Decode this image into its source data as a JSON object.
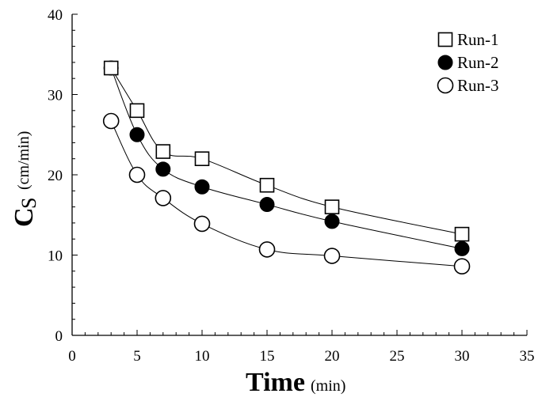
{
  "chart_data": {
    "type": "line",
    "xlabel": "Time",
    "xlabel_unit": "(min)",
    "ylabel_main": "C",
    "ylabel_sub": "S",
    "ylabel_unit": "(cm/min)",
    "xlim": [
      0,
      35
    ],
    "ylim": [
      0,
      40
    ],
    "xticks": [
      0,
      5,
      10,
      15,
      20,
      25,
      30,
      35
    ],
    "yticks": [
      0,
      10,
      20,
      30,
      40
    ],
    "grid": false,
    "legend_position": "top-right",
    "x": [
      3,
      5,
      7,
      10,
      15,
      20,
      30
    ],
    "series": [
      {
        "name": "Run-1",
        "marker": "square-open",
        "values": [
          33.3,
          28.0,
          22.9,
          22.0,
          18.7,
          16.0,
          12.6
        ]
      },
      {
        "name": "Run-2",
        "marker": "circle-filled",
        "values": [
          33.3,
          25.0,
          20.7,
          18.5,
          16.3,
          14.2,
          10.8
        ]
      },
      {
        "name": "Run-3",
        "marker": "circle-open",
        "values": [
          26.7,
          20.0,
          17.1,
          13.9,
          10.7,
          9.9,
          8.6
        ]
      }
    ]
  }
}
